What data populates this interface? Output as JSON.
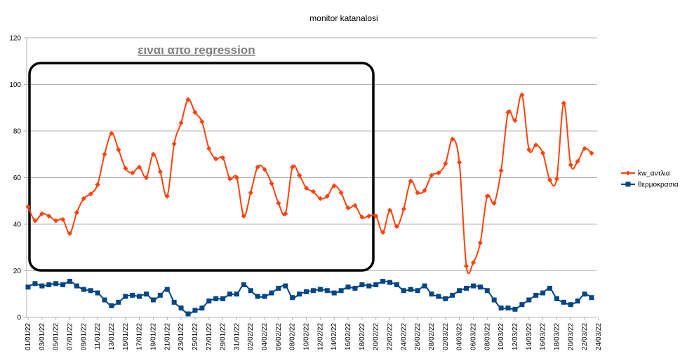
{
  "chart_data": {
    "type": "line",
    "title": "monitor katanalosi",
    "annotation": "ειναι απο regression",
    "xlabel": "",
    "ylabel": "",
    "ylim": [
      0,
      120
    ],
    "yticks": [
      0,
      20,
      40,
      60,
      80,
      100,
      120
    ],
    "grid": true,
    "legend_position": "right",
    "x_tick_labels": [
      "01/01/22",
      "03/01/22",
      "05/01/22",
      "07/01/22",
      "09/01/22",
      "11/01/22",
      "13/01/22",
      "15/01/22",
      "17/01/22",
      "19/01/22",
      "21/01/22",
      "23/01/22",
      "25/01/22",
      "27/01/22",
      "29/01/22",
      "31/01/22",
      "02/02/22",
      "04/02/22",
      "06/02/22",
      "08/02/22",
      "10/02/22",
      "12/02/22",
      "14/02/22",
      "16/02/22",
      "18/02/22",
      "20/02/22",
      "22/02/22",
      "24/02/22",
      "26/02/22",
      "28/02/22",
      "02/03/22",
      "04/03/22",
      "06/03/22",
      "08/03/22",
      "10/03/22",
      "12/03/22",
      "14/03/22",
      "16/03/22",
      "18/03/22",
      "20/03/22",
      "22/03/22",
      "24/03/22"
    ],
    "series": [
      {
        "name": "kw_αντλια",
        "color": "#ff420e",
        "marker": "diamond",
        "values": [
          47.5,
          41.5,
          44.5,
          43.5,
          41.5,
          42,
          36,
          45,
          51,
          53,
          57,
          70,
          79,
          72,
          64,
          62,
          64.5,
          60,
          70,
          62.5,
          52,
          74.5,
          83.5,
          93.5,
          88,
          84,
          72.5,
          68,
          68.5,
          59.5,
          60,
          43.5,
          53.5,
          64.5,
          63.5,
          57.5,
          49,
          44.5,
          64.5,
          61,
          55.5,
          54,
          51,
          52,
          56.5,
          53.5,
          47,
          48,
          43,
          43.5,
          43.5,
          36.5,
          46,
          39,
          46.5,
          58.5,
          53.5,
          54.5,
          61,
          62,
          66,
          76.5,
          66.5,
          22,
          23.5,
          32,
          52,
          49,
          63,
          88,
          84.5,
          95.5,
          72,
          74,
          70.5,
          59,
          59.5,
          92,
          65.5,
          67,
          72.5,
          70.5
        ]
      },
      {
        "name": "θερμοκρασια",
        "color": "#004586",
        "marker": "square",
        "values": [
          13,
          14.5,
          13.5,
          14,
          14.5,
          14,
          15.5,
          13.5,
          12,
          11.5,
          10.5,
          7.5,
          5,
          6.5,
          9,
          9.5,
          9,
          10,
          7.5,
          9.5,
          12,
          6.5,
          4,
          1.5,
          3,
          4,
          7,
          8,
          8,
          10,
          10,
          14,
          11.5,
          9,
          9,
          10.5,
          12.5,
          13.5,
          8.5,
          10,
          11,
          11.5,
          12,
          11.5,
          10.5,
          11.5,
          13,
          12.5,
          14,
          13.5,
          14,
          15.5,
          15,
          14,
          11.5,
          12,
          11.5,
          13.5,
          10,
          9,
          8,
          9.5,
          11.5,
          12.5,
          13.5,
          13,
          11.5,
          7.5,
          4,
          4,
          3.5,
          5.5,
          7.5,
          9.5,
          10.5,
          12.5,
          8,
          6.5,
          5.5,
          7,
          10,
          8.5
        ]
      }
    ]
  }
}
